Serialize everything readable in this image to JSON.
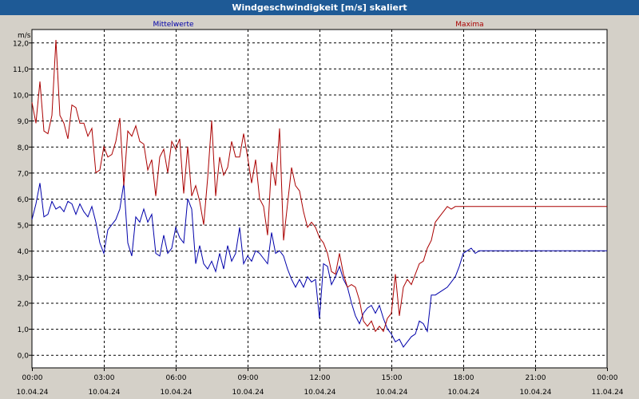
{
  "window": {
    "title": "Windgeschwindigkeit [m/s] skaliert"
  },
  "chart_data": {
    "type": "line",
    "ylabel": "m/s",
    "ylim": [
      -0.5,
      12.5
    ],
    "yticks": [
      "0,0",
      "1,0",
      "2,0",
      "3,0",
      "4,0",
      "5,0",
      "6,0",
      "7,0",
      "8,0",
      "9,0",
      "10,0",
      "11,0",
      "12,0"
    ],
    "xticks": [
      {
        "time": "00:00",
        "date": "10.04.24"
      },
      {
        "time": "03:00",
        "date": "10.04.24"
      },
      {
        "time": "06:00",
        "date": "10.04.24"
      },
      {
        "time": "09:00",
        "date": "10.04.24"
      },
      {
        "time": "12:00",
        "date": "10.04.24"
      },
      {
        "time": "15:00",
        "date": "10.04.24"
      },
      {
        "time": "18:00",
        "date": "10.04.24"
      },
      {
        "time": "21:00",
        "date": "10.04.24"
      },
      {
        "time": "00:00",
        "date": "11.04.24"
      }
    ],
    "xlim": [
      "10.04.24 00:00",
      "11.04.24 00:00"
    ],
    "grid": true,
    "colors": {
      "mittelwerte": "#0000aa",
      "maxima": "#aa0000"
    },
    "series": [
      {
        "name": "Mittelwerte",
        "color": "#0000aa",
        "x": [
          "00:00",
          "00:10",
          "00:20",
          "00:30",
          "00:40",
          "00:50",
          "01:00",
          "01:10",
          "01:20",
          "01:30",
          "01:40",
          "01:50",
          "02:00",
          "02:10",
          "02:20",
          "02:30",
          "02:40",
          "02:50",
          "03:00",
          "03:10",
          "03:20",
          "03:30",
          "03:40",
          "03:50",
          "04:00",
          "04:10",
          "04:20",
          "04:30",
          "04:40",
          "04:50",
          "05:00",
          "05:10",
          "05:20",
          "05:30",
          "05:40",
          "05:50",
          "06:00",
          "06:10",
          "06:20",
          "06:30",
          "06:40",
          "06:50",
          "07:00",
          "07:10",
          "07:20",
          "07:30",
          "07:40",
          "07:50",
          "08:00",
          "08:10",
          "08:20",
          "08:30",
          "08:40",
          "08:50",
          "09:00",
          "09:10",
          "09:20",
          "09:30",
          "09:40",
          "09:50",
          "10:00",
          "10:10",
          "10:20",
          "10:30",
          "10:40",
          "10:50",
          "11:00",
          "11:10",
          "11:20",
          "11:30",
          "11:40",
          "11:50",
          "12:00",
          "12:10",
          "12:20",
          "12:30",
          "12:40",
          "12:50",
          "13:00",
          "13:10",
          "13:20",
          "13:30",
          "13:40",
          "13:50",
          "14:00",
          "14:10",
          "14:20",
          "14:30",
          "14:40",
          "14:50",
          "15:00",
          "15:10",
          "15:20",
          "15:30",
          "15:40",
          "15:50",
          "16:00",
          "16:10",
          "16:20",
          "16:30",
          "16:40",
          "16:50",
          "17:00",
          "17:10",
          "17:20",
          "17:30",
          "17:40",
          "17:50",
          "18:00",
          "18:10",
          "18:20",
          "18:30",
          "18:40",
          "18:50",
          "19:00",
          "19:10",
          "19:20",
          "19:30",
          "19:40",
          "19:50",
          "20:00",
          "20:10",
          "20:20",
          "20:30",
          "20:40",
          "20:50",
          "21:00",
          "21:10",
          "21:20",
          "21:30",
          "21:40",
          "21:50",
          "22:00",
          "22:10",
          "22:20",
          "22:30",
          "22:40",
          "22:50",
          "23:00",
          "23:10",
          "23:20",
          "23:30",
          "23:40",
          "23:50",
          "24:00"
        ],
        "values": [
          5.2,
          5.8,
          6.6,
          5.3,
          5.4,
          5.9,
          5.6,
          5.7,
          5.5,
          5.9,
          5.8,
          5.4,
          5.8,
          5.5,
          5.3,
          5.7,
          5.1,
          4.3,
          3.9,
          4.8,
          5.0,
          5.2,
          5.6,
          6.6,
          4.3,
          3.8,
          5.3,
          5.1,
          5.6,
          5.1,
          5.4,
          3.9,
          3.8,
          4.6,
          3.9,
          4.1,
          4.9,
          4.5,
          4.3,
          6.0,
          5.6,
          3.5,
          4.2,
          3.5,
          3.3,
          3.6,
          3.2,
          3.9,
          3.3,
          4.2,
          3.6,
          3.9,
          4.9,
          3.5,
          3.8,
          3.6,
          4.0,
          3.9,
          3.7,
          3.5,
          4.7,
          3.9,
          4.0,
          3.8,
          3.3,
          2.9,
          2.6,
          2.9,
          2.6,
          3.0,
          2.8,
          2.9,
          1.4,
          3.5,
          3.4,
          2.7,
          3.0,
          3.4,
          2.9,
          2.6,
          2.0,
          1.5,
          1.2,
          1.6,
          1.8,
          1.9,
          1.6,
          1.9,
          1.4,
          1.0,
          0.8,
          0.5,
          0.6,
          0.3,
          0.5,
          0.7,
          0.8,
          1.3,
          1.2,
          0.9,
          2.3,
          2.3,
          2.4,
          2.5,
          2.6,
          2.8,
          3.0,
          3.4,
          3.9,
          4.0,
          4.1,
          3.9,
          4.0,
          4.0,
          4.0,
          4.0,
          4.0,
          4.0,
          4.0,
          4.0,
          4.0,
          4.0,
          4.0,
          4.0,
          4.0,
          4.0,
          4.0,
          4.0,
          4.0,
          4.0,
          4.0,
          4.0,
          4.0,
          4.0,
          4.0,
          4.0,
          4.0,
          4.0,
          4.0,
          4.0,
          4.0,
          4.0,
          4.0,
          4.0,
          4.0
        ]
      },
      {
        "name": "Maxima",
        "color": "#aa0000",
        "x": [
          "00:00",
          "00:10",
          "00:20",
          "00:30",
          "00:40",
          "00:50",
          "01:00",
          "01:10",
          "01:20",
          "01:30",
          "01:40",
          "01:50",
          "02:00",
          "02:10",
          "02:20",
          "02:30",
          "02:40",
          "02:50",
          "03:00",
          "03:10",
          "03:20",
          "03:30",
          "03:40",
          "03:50",
          "04:00",
          "04:10",
          "04:20",
          "04:30",
          "04:40",
          "04:50",
          "05:00",
          "05:10",
          "05:20",
          "05:30",
          "05:40",
          "05:50",
          "06:00",
          "06:10",
          "06:20",
          "06:30",
          "06:40",
          "06:50",
          "07:00",
          "07:10",
          "07:20",
          "07:30",
          "07:40",
          "07:50",
          "08:00",
          "08:10",
          "08:20",
          "08:30",
          "08:40",
          "08:50",
          "09:00",
          "09:10",
          "09:20",
          "09:30",
          "09:40",
          "09:50",
          "10:00",
          "10:10",
          "10:20",
          "10:30",
          "10:40",
          "10:50",
          "11:00",
          "11:10",
          "11:20",
          "11:30",
          "11:40",
          "11:50",
          "12:00",
          "12:10",
          "12:20",
          "12:30",
          "12:40",
          "12:50",
          "13:00",
          "13:10",
          "13:20",
          "13:30",
          "13:40",
          "13:50",
          "14:00",
          "14:10",
          "14:20",
          "14:30",
          "14:40",
          "14:50",
          "15:00",
          "15:10",
          "15:20",
          "15:30",
          "15:40",
          "15:50",
          "16:00",
          "16:10",
          "16:20",
          "16:30",
          "16:40",
          "16:50",
          "17:00",
          "17:10",
          "17:20",
          "17:30",
          "17:40",
          "17:50",
          "18:00",
          "18:10",
          "18:20",
          "18:30",
          "18:40",
          "18:50",
          "19:00",
          "19:10",
          "19:20",
          "19:30",
          "19:40",
          "19:50",
          "20:00",
          "20:10",
          "20:20",
          "20:30",
          "20:40",
          "20:50",
          "21:00",
          "21:10",
          "21:20",
          "21:30",
          "21:40",
          "21:50",
          "22:00",
          "22:10",
          "22:20",
          "22:30",
          "22:40",
          "22:50",
          "23:00",
          "23:10",
          "23:20",
          "23:30",
          "23:40",
          "23:50",
          "24:00"
        ],
        "values": [
          9.7,
          8.9,
          10.5,
          8.6,
          8.5,
          9.2,
          12.1,
          9.2,
          8.9,
          8.3,
          9.6,
          9.5,
          8.9,
          8.9,
          8.4,
          8.7,
          7.0,
          7.1,
          8.0,
          7.6,
          7.7,
          8.2,
          9.1,
          6.5,
          8.6,
          8.4,
          8.8,
          8.2,
          8.1,
          7.1,
          7.5,
          6.1,
          7.6,
          7.9,
          7.0,
          8.2,
          7.9,
          8.3,
          6.2,
          8.0,
          6.1,
          6.5,
          5.9,
          5.0,
          6.8,
          9.0,
          6.1,
          7.6,
          6.9,
          7.2,
          8.2,
          7.6,
          7.6,
          8.5,
          7.6,
          6.6,
          7.5,
          6.0,
          5.7,
          4.6,
          7.4,
          6.5,
          8.7,
          4.4,
          5.8,
          7.2,
          6.5,
          6.3,
          5.5,
          4.9,
          5.1,
          4.9,
          4.5,
          4.3,
          3.9,
          3.2,
          3.1,
          3.9,
          3.1,
          2.6,
          2.7,
          2.6,
          2.1,
          1.3,
          1.1,
          1.3,
          0.9,
          1.1,
          0.9,
          1.4,
          1.6,
          3.1,
          1.5,
          2.6,
          2.9,
          2.7,
          3.1,
          3.5,
          3.6,
          4.1,
          4.4,
          5.1,
          5.3,
          5.5,
          5.7,
          5.6,
          5.7,
          5.7,
          5.7,
          5.7,
          5.7,
          5.7,
          5.7,
          5.7,
          5.7,
          5.7,
          5.7,
          5.7,
          5.7,
          5.7,
          5.7,
          5.7,
          5.7,
          5.7,
          5.7,
          5.7,
          5.7,
          5.7,
          5.7,
          5.7,
          5.7,
          5.7,
          5.7,
          5.7,
          5.7,
          5.7,
          5.7,
          5.7,
          5.7,
          5.7,
          5.7,
          5.7,
          5.7,
          5.7,
          5.7
        ]
      }
    ]
  }
}
